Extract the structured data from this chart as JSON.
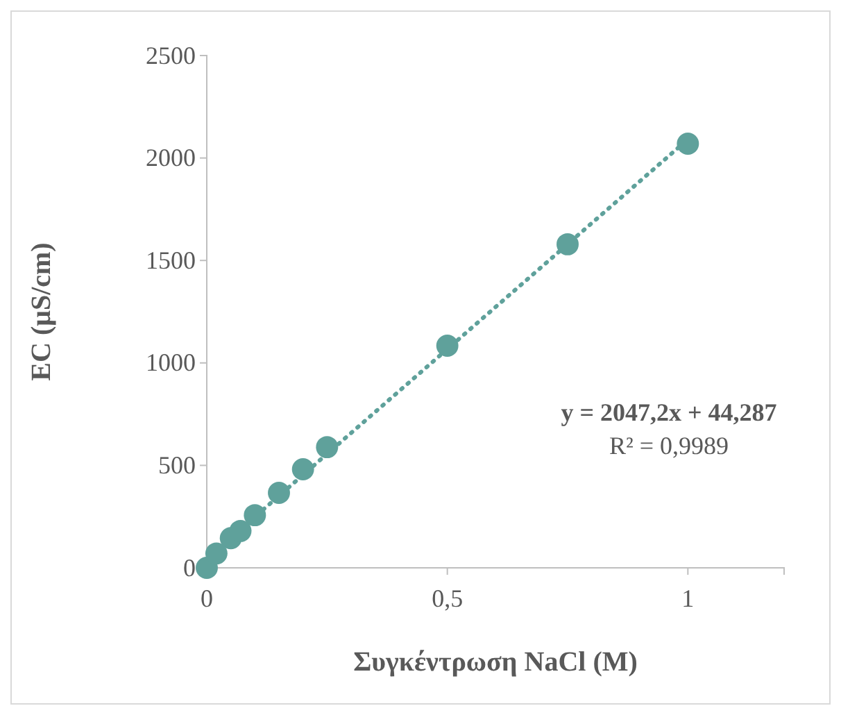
{
  "chart_data": {
    "type": "scatter",
    "xlabel": "Συγκέντρωση NaCl (M)",
    "ylabel": "EC (μS/cm)",
    "xlim": [
      0,
      1.2
    ],
    "xticks": [
      0,
      {
        "value": 0.5,
        "label": "0,5"
      },
      1
    ],
    "ylim": [
      0,
      2500
    ],
    "yticks": [
      0,
      500,
      1000,
      1500,
      2000,
      2500
    ],
    "grid": false,
    "series": [
      {
        "marker": "circle",
        "color": "#5fa19b",
        "x": [
          0,
          0.02,
          0.05,
          0.07,
          0.1,
          0.15,
          0.2,
          0.25,
          0.5,
          0.75,
          1
        ],
        "values": [
          0,
          70,
          145,
          180,
          257,
          366,
          481,
          589,
          1084,
          1579,
          2070
        ]
      },
      {
        "type": "line",
        "marker": "none",
        "line_style": "dotted",
        "color": "#5fa19b",
        "x": [
          0,
          1
        ],
        "values": [
          44,
          2091
        ]
      }
    ],
    "annotations": [
      "y = 2047,2x + 44,287",
      "R² = 0,9989"
    ]
  }
}
